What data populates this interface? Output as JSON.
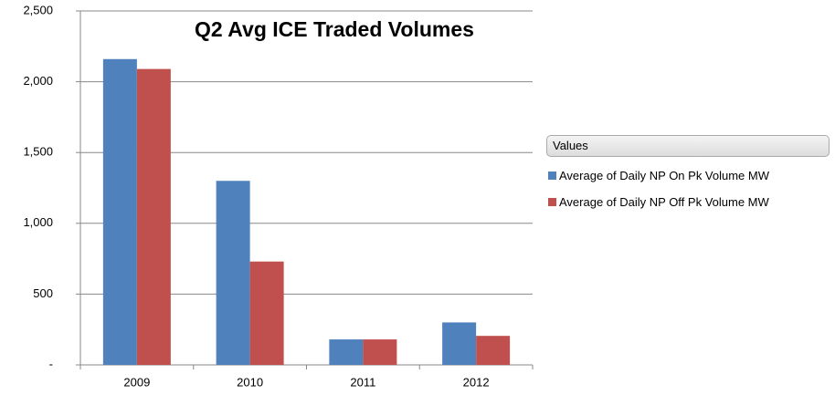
{
  "chart_data": {
    "type": "bar",
    "title": "Q2 Avg ICE Traded Volumes",
    "categories": [
      "2009",
      "2010",
      "2011",
      "2012"
    ],
    "series": [
      {
        "name": "Average of Daily NP On Pk Volume MW",
        "color": "#4f81bd",
        "values": [
          2160,
          1300,
          180,
          300
        ]
      },
      {
        "name": "Average of Daily NP Off Pk Volume MW",
        "color": "#c0504d",
        "values": [
          2090,
          730,
          180,
          205
        ]
      }
    ],
    "legend_title": "Values",
    "ylim": [
      0,
      2500
    ],
    "yticks": [
      {
        "value": 0,
        "label": "-"
      },
      500,
      {
        "value": 1000,
        "label": "1,000"
      },
      {
        "value": 1500,
        "label": "1,500"
      },
      {
        "value": 2000,
        "label": "2,000"
      },
      {
        "value": 2500,
        "label": "2,500"
      }
    ],
    "grid": true,
    "legend": "right"
  }
}
